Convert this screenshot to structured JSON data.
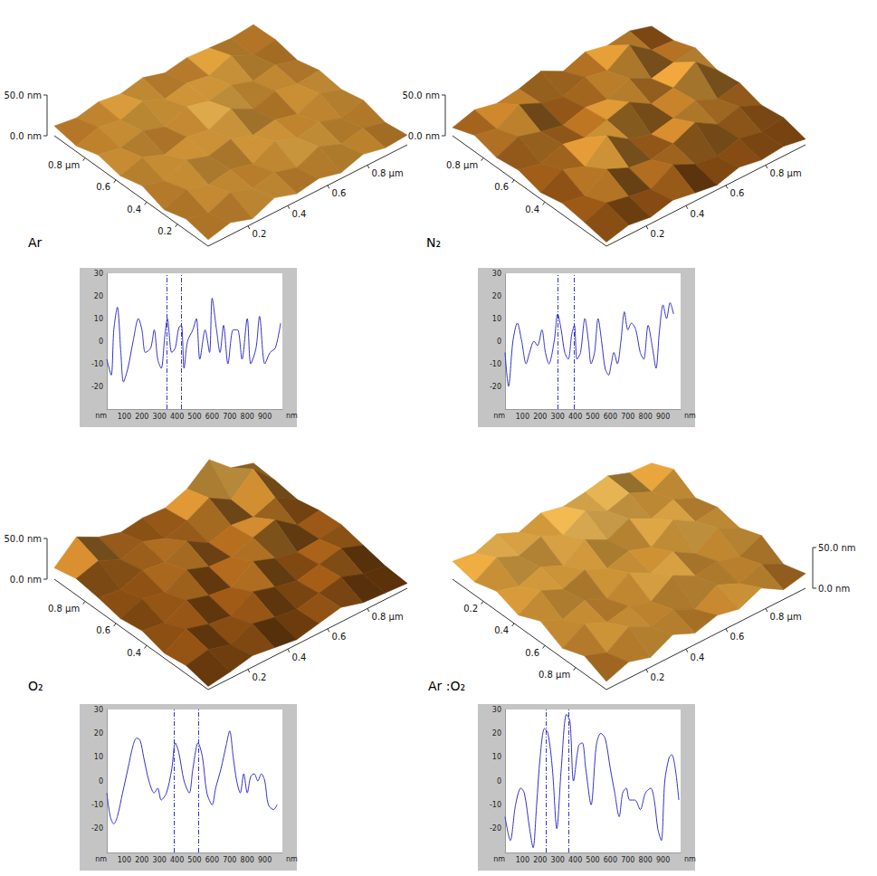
{
  "chart_data": [
    {
      "type": "surface",
      "title": "Ar",
      "xlim": [
        1,
        0
      ],
      "xticks": [
        {
          "value": 0.8,
          "label": "0.8 µm"
        },
        0.6,
        0.4,
        0.2
      ],
      "ylim": [
        0,
        1
      ],
      "yticks": [
        0.2,
        0.4,
        0.6,
        {
          "value": 0.8,
          "label": "0.8 µm"
        }
      ],
      "zlim": [
        0,
        50
      ],
      "zticks": [
        {
          "value": 50,
          "label": "50.0 nm"
        },
        {
          "value": 0,
          "label": "0.0 nm"
        }
      ],
      "heights": [
        [
          8,
          15,
          6,
          18,
          9,
          14,
          7,
          16,
          10,
          12
        ],
        [
          14,
          7,
          19,
          10,
          16,
          8,
          20,
          9,
          15,
          8
        ],
        [
          6,
          17,
          9,
          14,
          7,
          21,
          11,
          17,
          8,
          16
        ],
        [
          16,
          8,
          20,
          11,
          18,
          9,
          14,
          7,
          19,
          10
        ],
        [
          9,
          18,
          7,
          15,
          10,
          22,
          8,
          16,
          11,
          14
        ],
        [
          15,
          10,
          17,
          8,
          19,
          12,
          18,
          9,
          15,
          7
        ],
        [
          7,
          16,
          11,
          20,
          9,
          15,
          10,
          21,
          8,
          13
        ],
        [
          12,
          8,
          14,
          10,
          16,
          8,
          13,
          11,
          9,
          12
        ]
      ]
    },
    {
      "type": "line",
      "xlabel": "nm",
      "ylabel": "nm",
      "color": "#3333cc",
      "grid": false,
      "xlim": [
        0,
        1000
      ],
      "xticks": [
        100,
        200,
        300,
        400,
        500,
        600,
        700,
        800,
        900
      ],
      "ylim": [
        -30,
        30
      ],
      "yticks": [
        -20,
        -10,
        0,
        10,
        20,
        30
      ],
      "cursors": [
        340,
        425
      ],
      "x": [
        0,
        25,
        40,
        60,
        80,
        95,
        120,
        150,
        180,
        200,
        220,
        250,
        270,
        290,
        310,
        330,
        345,
        370,
        390,
        410,
        425,
        440,
        460,
        490,
        510,
        530,
        560,
        585,
        600,
        625,
        645,
        665,
        690,
        720,
        745,
        770,
        800,
        820,
        850,
        870,
        900,
        930,
        960,
        990
      ],
      "values": [
        -8,
        -15,
        5,
        15,
        -5,
        -18,
        -12,
        0,
        10,
        5,
        -5,
        -3,
        5,
        -8,
        -12,
        2,
        10,
        -5,
        -3,
        6,
        7,
        -12,
        0,
        5,
        10,
        -8,
        5,
        -5,
        19,
        5,
        -5,
        7,
        -10,
        5,
        5,
        -8,
        10,
        -10,
        -3,
        11,
        -10,
        -5,
        -3,
        8
      ]
    },
    {
      "type": "surface",
      "title": "N₂",
      "xlim": [
        1,
        0
      ],
      "xticks": [
        {
          "value": 0.8,
          "label": "0.8 µm"
        },
        0.6,
        0.4
      ],
      "ylim": [
        0,
        1
      ],
      "yticks": [
        0.2,
        0.4,
        0.6,
        {
          "value": 0.8,
          "label": "0.8 µm"
        }
      ],
      "zlim": [
        0,
        50
      ],
      "zticks": [
        {
          "value": 50,
          "label": "50.0 nm"
        },
        {
          "value": 0,
          "label": "0.0 nm"
        }
      ],
      "heights": [
        [
          5,
          12,
          8,
          15,
          10,
          6,
          14,
          9,
          12,
          7
        ],
        [
          10,
          20,
          14,
          9,
          25,
          12,
          8,
          16,
          10,
          14
        ],
        [
          14,
          9,
          28,
          16,
          12,
          18,
          30,
          14,
          22,
          10
        ],
        [
          8,
          22,
          12,
          36,
          18,
          10,
          16,
          24,
          12,
          18
        ],
        [
          16,
          10,
          20,
          14,
          22,
          30,
          14,
          20,
          38,
          14
        ],
        [
          12,
          24,
          16,
          10,
          18,
          14,
          26,
          12,
          18,
          22
        ],
        [
          20,
          14,
          30,
          18,
          12,
          22,
          16,
          34,
          14,
          12
        ],
        [
          10,
          18,
          12,
          16,
          24,
          10,
          20,
          14,
          18,
          10
        ]
      ]
    },
    {
      "type": "line",
      "xlabel": "nm",
      "ylabel": "nm",
      "color": "#3333cc",
      "grid": false,
      "xlim": [
        0,
        1000
      ],
      "xticks": [
        100,
        200,
        300,
        400,
        500,
        600,
        700,
        800,
        900
      ],
      "ylim": [
        -30,
        30
      ],
      "yticks": [
        -20,
        -10,
        0,
        10,
        20,
        30
      ],
      "cursors": [
        300,
        395
      ],
      "x": [
        0,
        20,
        45,
        70,
        95,
        120,
        140,
        165,
        185,
        210,
        230,
        250,
        280,
        300,
        320,
        340,
        360,
        380,
        395,
        410,
        430,
        455,
        475,
        490,
        510,
        530,
        550,
        570,
        590,
        605,
        620,
        640,
        660,
        680,
        700,
        720,
        745,
        770,
        790,
        815,
        840,
        860,
        880,
        900,
        920,
        940,
        960
      ],
      "values": [
        -5,
        -20,
        0,
        8,
        0,
        -10,
        -5,
        0,
        -2,
        5,
        -5,
        -10,
        0,
        12,
        5,
        -5,
        -8,
        3,
        7,
        -8,
        -5,
        10,
        0,
        -10,
        -5,
        10,
        0,
        -12,
        -15,
        -10,
        -5,
        -10,
        0,
        13,
        5,
        8,
        5,
        -5,
        -8,
        7,
        -3,
        -12,
        5,
        16,
        10,
        17,
        12
      ]
    },
    {
      "type": "surface",
      "title": "O₂",
      "xlim": [
        1,
        0
      ],
      "xticks": [
        {
          "value": 0.8,
          "label": "0.8 µm"
        },
        0.6,
        0.4
      ],
      "ylim": [
        0,
        1
      ],
      "yticks": [
        0.2,
        0.4,
        0.6,
        {
          "value": 0.8,
          "label": "0.8 µm"
        }
      ],
      "zlim": [
        0,
        50
      ],
      "zticks": [
        {
          "value": 50,
          "label": "50.0 nm"
        },
        {
          "value": 0,
          "label": "0.0 nm"
        }
      ],
      "heights": [
        [
          4,
          8,
          14,
          10,
          6,
          12,
          18,
          10,
          8,
          6
        ],
        [
          10,
          16,
          8,
          20,
          14,
          10,
          16,
          22,
          12,
          8
        ],
        [
          6,
          22,
          14,
          10,
          26,
          18,
          12,
          18,
          24,
          14
        ],
        [
          14,
          10,
          24,
          16,
          12,
          30,
          20,
          14,
          16,
          20
        ],
        [
          10,
          20,
          14,
          28,
          18,
          16,
          26,
          34,
          14,
          18
        ],
        [
          16,
          12,
          22,
          18,
          30,
          14,
          22,
          18,
          28,
          12
        ],
        [
          20,
          28,
          16,
          24,
          14,
          22,
          36,
          20,
          44,
          16
        ],
        [
          14,
          38,
          24,
          16,
          20,
          18,
          28,
          50,
          26,
          18
        ]
      ]
    },
    {
      "type": "line",
      "xlabel": "nm",
      "ylabel": "nm",
      "color": "#3333cc",
      "grid": false,
      "xlim": [
        0,
        1000
      ],
      "xticks": [
        100,
        200,
        300,
        400,
        500,
        600,
        700,
        800,
        900
      ],
      "ylim": [
        -30,
        30
      ],
      "yticks": [
        -20,
        -10,
        0,
        10,
        20,
        30
      ],
      "cursors": [
        385,
        520
      ],
      "x": [
        0,
        20,
        40,
        60,
        90,
        120,
        150,
        170,
        190,
        210,
        240,
        270,
        290,
        310,
        340,
        370,
        390,
        410,
        440,
        470,
        490,
        520,
        545,
        570,
        600,
        620,
        650,
        680,
        700,
        720,
        740,
        760,
        780,
        800,
        820,
        840,
        860,
        880,
        900,
        920,
        950,
        970
      ],
      "values": [
        -5,
        -15,
        -18,
        -15,
        -5,
        5,
        15,
        18,
        17,
        10,
        0,
        -5,
        -3,
        -8,
        -5,
        5,
        16,
        12,
        0,
        -5,
        5,
        16,
        10,
        -5,
        -10,
        -3,
        5,
        15,
        21,
        10,
        0,
        -5,
        3,
        -5,
        2,
        3,
        0,
        3,
        0,
        -10,
        -12,
        -10
      ]
    },
    {
      "type": "surface",
      "title": "Ar :O₂",
      "xlim": [
        0,
        1
      ],
      "xticks": [
        0.2,
        0.4,
        0.6,
        {
          "value": 0.8,
          "label": "0.8 µm"
        }
      ],
      "ylim": [
        0,
        1
      ],
      "yticks": [
        0.2,
        0.4,
        0.6,
        {
          "value": 0.8,
          "label": "0.8 µm"
        }
      ],
      "zlim": [
        0,
        50
      ],
      "zticks": [
        {
          "value": 50,
          "label": "50.0 nm"
        },
        {
          "value": 0,
          "label": "0.0 nm"
        }
      ],
      "heights": [
        [
          10,
          20,
          12,
          26,
          14,
          22,
          16,
          28,
          12,
          18
        ],
        [
          22,
          12,
          30,
          16,
          24,
          10,
          26,
          14,
          24,
          10
        ],
        [
          12,
          28,
          16,
          22,
          14,
          32,
          18,
          22,
          14,
          26
        ],
        [
          26,
          14,
          24,
          12,
          30,
          16,
          28,
          12,
          30,
          16
        ],
        [
          14,
          30,
          18,
          28,
          16,
          24,
          14,
          34,
          18,
          22
        ],
        [
          24,
          16,
          26,
          14,
          32,
          18,
          30,
          16,
          26,
          14
        ],
        [
          16,
          32,
          20,
          30,
          18,
          34,
          20,
          28,
          16,
          30
        ],
        [
          22,
          18,
          28,
          16,
          26,
          20,
          24,
          30,
          20,
          18
        ]
      ]
    },
    {
      "type": "line",
      "xlabel": "nm",
      "ylabel": "nm",
      "color": "#3333cc",
      "grid": false,
      "xlim": [
        0,
        1000
      ],
      "xticks": [
        100,
        200,
        300,
        400,
        500,
        600,
        700,
        800,
        900
      ],
      "ylim": [
        -30,
        30
      ],
      "yticks": [
        -20,
        -10,
        0,
        10,
        20,
        30
      ],
      "cursors": [
        235,
        360
      ],
      "x": [
        0,
        30,
        60,
        90,
        110,
        140,
        160,
        180,
        200,
        225,
        245,
        270,
        295,
        320,
        350,
        370,
        390,
        420,
        440,
        460,
        490,
        520,
        545,
        570,
        600,
        625,
        650,
        670,
        690,
        710,
        740,
        770,
        800,
        830,
        850,
        870,
        890,
        910,
        935,
        950,
        970,
        990
      ],
      "values": [
        -15,
        -25,
        -10,
        -3,
        -5,
        -20,
        -28,
        -10,
        10,
        22,
        20,
        5,
        -20,
        5,
        28,
        25,
        0,
        15,
        16,
        5,
        -10,
        15,
        20,
        18,
        5,
        -5,
        -15,
        -5,
        -3,
        -8,
        -8,
        -12,
        -5,
        -3,
        -8,
        -20,
        -25,
        0,
        10,
        11,
        5,
        -8
      ]
    }
  ]
}
